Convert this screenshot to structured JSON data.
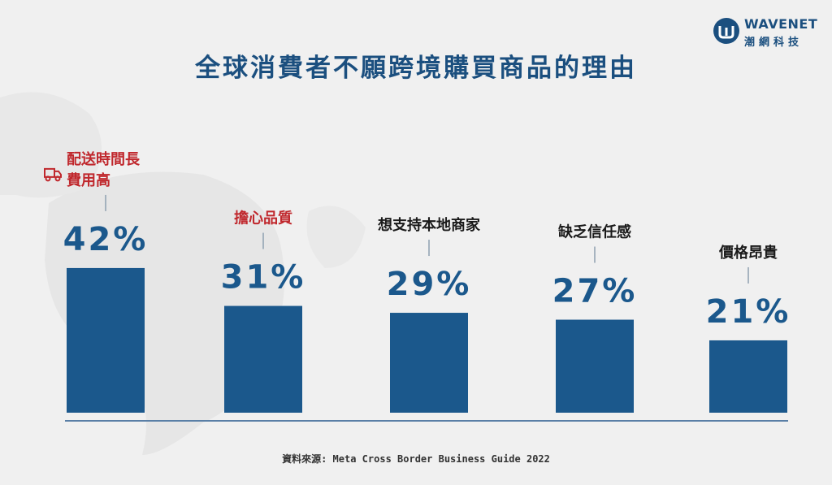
{
  "header": {
    "logo_name": "WAVENET",
    "logo_sub": "潮網科技",
    "title": "全球消費者不願跨境購買商品的理由"
  },
  "chart_data": {
    "type": "bar",
    "title": "全球消費者不願跨境購買商品的理由",
    "categories": [
      "配送時間長\n費用高",
      "擔心品質",
      "想支持本地商家",
      "缺乏信任感",
      "價格昂貴"
    ],
    "values": [
      42,
      31,
      29,
      27,
      21
    ],
    "value_labels": [
      "42%",
      "31%",
      "29%",
      "27%",
      "21%"
    ],
    "unit": "%",
    "highlighted": [
      true,
      true,
      false,
      false,
      false
    ],
    "xlabel": "",
    "ylabel": "",
    "grid": false,
    "legend": "none",
    "colors": {
      "bar": "#1b588c",
      "value_text": "#1b588c",
      "highlight_label": "#c0282d",
      "label": "#1a1a1a",
      "baseline": "#5a7fa6",
      "leader": "#8fa0b0"
    }
  },
  "icons": {
    "highlight_icon": "delivery-truck-icon"
  },
  "footer": {
    "source": "資料來源: Meta Cross Border Business Guide 2022"
  }
}
